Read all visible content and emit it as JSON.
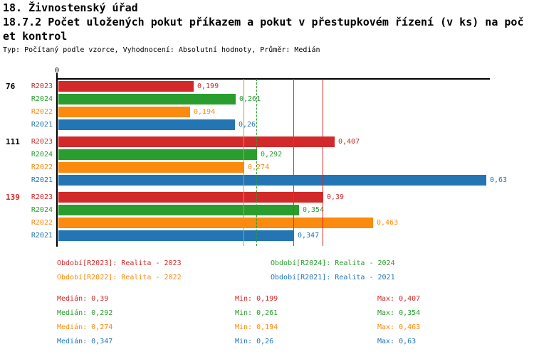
{
  "header": {
    "line1": "18. Živnostenský úřad",
    "line2": "18.7.2 Počet uložených pokut příkazem a pokut v přestupkovém řízení (v ks) na poč",
    "line3": "et kontrol",
    "meta": "Typ: Počítaný podle vzorce, Vyhodnocení: Absolutní hodnoty, Průměr: Medián"
  },
  "chart_data": {
    "type": "bar",
    "orientation": "horizontal",
    "title": "18.7.2 Počet uložených pokut příkazem a pokut v přestupkovém řízení (v ks) na počet kontrol",
    "value_axis": {
      "min": 0,
      "zero_label": "0",
      "approx_max": 0.64,
      "decimal_separator": ","
    },
    "series": [
      {
        "name": "R2023",
        "color": "#d22a2a",
        "legend_label": "Období[R2023]: Realita - 2023"
      },
      {
        "name": "R2024",
        "color": "#2a9d2f",
        "legend_label": "Období[R2024]: Realita - 2024"
      },
      {
        "name": "R2022",
        "color": "#fb8a0e",
        "legend_label": "Období[R2022]: Realita - 2022"
      },
      {
        "name": "R2021",
        "color": "#2475b4",
        "legend_label": "Období[R2021]: Realita - 2021"
      }
    ],
    "groups": [
      {
        "label": "76",
        "label_color": "#000000",
        "bars": [
          {
            "series": "R2023",
            "value": 0.199,
            "display": "0,199"
          },
          {
            "series": "R2024",
            "value": 0.261,
            "display": "0,261"
          },
          {
            "series": "R2022",
            "value": 0.194,
            "display": "0,194"
          },
          {
            "series": "R2021",
            "value": 0.26,
            "display": "0,26"
          }
        ]
      },
      {
        "label": "111",
        "label_color": "#000000",
        "bars": [
          {
            "series": "R2023",
            "value": 0.407,
            "display": "0,407"
          },
          {
            "series": "R2024",
            "value": 0.292,
            "display": "0,292"
          },
          {
            "series": "R2022",
            "value": 0.274,
            "display": "0,274"
          },
          {
            "series": "R2021",
            "value": 0.63,
            "display": "0,63"
          }
        ]
      },
      {
        "label": "139",
        "label_color": "#d22a2a",
        "bars": [
          {
            "series": "R2023",
            "value": 0.39,
            "display": "0,39"
          },
          {
            "series": "R2024",
            "value": 0.354,
            "display": "0,354"
          },
          {
            "series": "R2022",
            "value": 0.463,
            "display": "0,463"
          },
          {
            "series": "R2021",
            "value": 0.347,
            "display": "0,347"
          }
        ]
      }
    ],
    "median_lines": [
      {
        "series": "R2023",
        "value": 0.39
      },
      {
        "series": "R2024",
        "value": 0.292
      },
      {
        "series": "R2022",
        "value": 0.274
      },
      {
        "series": "R2021",
        "value": 0.347
      }
    ],
    "legend_position": "bottom",
    "stats": [
      {
        "series": "R2023",
        "median": 0.39,
        "min": 0.199,
        "max": 0.407,
        "median_label": "Medián: 0,39",
        "min_label": "Min: 0,199",
        "max_label": "Max: 0,407"
      },
      {
        "series": "R2024",
        "median": 0.292,
        "min": 0.261,
        "max": 0.354,
        "median_label": "Medián: 0,292",
        "min_label": "Min: 0,261",
        "max_label": "Max: 0,354"
      },
      {
        "series": "R2022",
        "median": 0.274,
        "min": 0.194,
        "max": 0.463,
        "median_label": "Medián: 0,274",
        "min_label": "Min: 0,194",
        "max_label": "Max: 0,463"
      },
      {
        "series": "R2021",
        "median": 0.347,
        "min": 0.26,
        "max": 0.63,
        "median_label": "Medián: 0,347",
        "min_label": "Min: 0,26",
        "max_label": "Max: 0,63"
      }
    ]
  }
}
